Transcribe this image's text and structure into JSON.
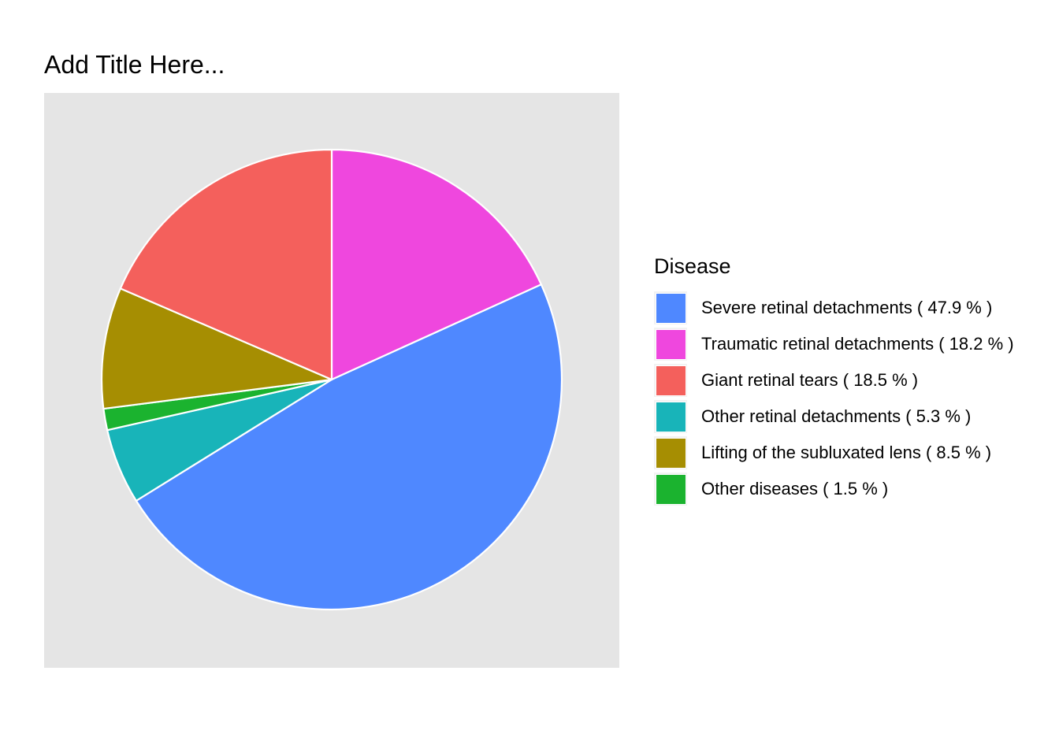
{
  "chart_data": {
    "type": "pie",
    "title": "Add Title Here...",
    "legend_title": "Disease",
    "legend_position": "right",
    "slices": [
      {
        "label": "Severe retinal detachments ( 47.9 % )",
        "value": 47.9,
        "color": "#4f88ff"
      },
      {
        "label": "Traumatic retinal detachments ( 18.2 % )",
        "value": 18.2,
        "color": "#ef47de"
      },
      {
        "label": "Giant retinal tears ( 18.5 % )",
        "value": 18.5,
        "color": "#f4605c"
      },
      {
        "label": "Other retinal detachments ( 5.3 % )",
        "value": 5.3,
        "color": "#18b4b9"
      },
      {
        "label": "Lifting of the subluxated lens ( 8.5 % )",
        "value": 8.5,
        "color": "#a68e02"
      },
      {
        "label": "Other diseases ( 1.5 % )",
        "value": 1.5,
        "color": "#1bb32f"
      }
    ],
    "draw_order_clockwise_from_top": [
      "Traumatic retinal detachments ( 18.2 % )",
      "Severe retinal detachments ( 47.9 % )",
      "Other retinal detachments ( 5.3 % )",
      "Other diseases ( 1.5 % )",
      "Lifting of the subluxated lens ( 8.5 % )",
      "Giant retinal tears ( 18.5 % )"
    ]
  }
}
